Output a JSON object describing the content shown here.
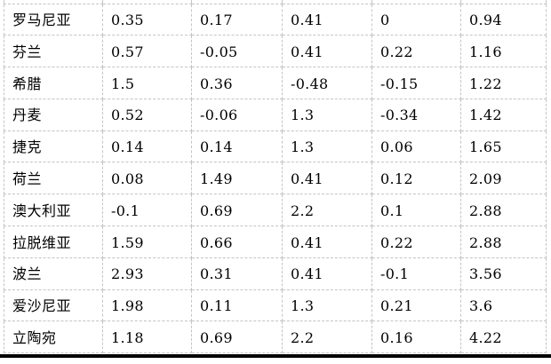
{
  "table": {
    "rows": [
      {
        "label": "罗马尼亚",
        "values": [
          "0.35",
          "0.17",
          "0.41",
          "0",
          "0.94"
        ]
      },
      {
        "label": "芬兰",
        "values": [
          "0.57",
          "-0.05",
          "0.41",
          "0.22",
          "1.16"
        ]
      },
      {
        "label": "希腊",
        "values": [
          "1.5",
          "0.36",
          "-0.48",
          "-0.15",
          "1.22"
        ]
      },
      {
        "label": "丹麦",
        "values": [
          "0.52",
          "-0.06",
          "1.3",
          "-0.34",
          "1.42"
        ]
      },
      {
        "label": "捷克",
        "values": [
          "0.14",
          "0.14",
          "1.3",
          "0.06",
          "1.65"
        ]
      },
      {
        "label": "荷兰",
        "values": [
          "0.08",
          "1.49",
          "0.41",
          "0.12",
          "2.09"
        ]
      },
      {
        "label": "澳大利亚",
        "values": [
          "-0.1",
          "0.69",
          "2.2",
          "0.1",
          "2.88"
        ]
      },
      {
        "label": "拉脱维亚",
        "values": [
          "1.59",
          "0.66",
          "0.41",
          "0.22",
          "2.88"
        ]
      },
      {
        "label": "波兰",
        "values": [
          "2.93",
          "0.31",
          "0.41",
          "-0.1",
          "3.56"
        ]
      },
      {
        "label": "爱沙尼亚",
        "values": [
          "1.98",
          "0.11",
          "1.3",
          "0.21",
          "3.6"
        ]
      },
      {
        "label": "立陶宛",
        "values": [
          "1.18",
          "0.69",
          "2.2",
          "0.16",
          "4.22"
        ]
      }
    ]
  },
  "colors": {
    "gridline": "#c4c4c4",
    "bottom_border": "#000000",
    "text": "#000000",
    "background": "#ffffff"
  }
}
